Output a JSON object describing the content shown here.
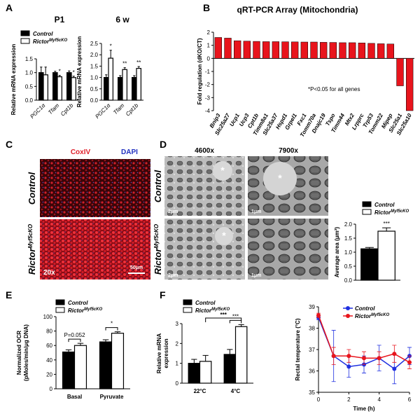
{
  "panel_labels": [
    "A",
    "B",
    "C",
    "D",
    "E",
    "F"
  ],
  "images": {
    "C": {
      "channels": [
        "CoxIV",
        "DAPI"
      ],
      "rows": [
        {
          "label": "Control"
        },
        {
          "label": "Rictor",
          "superscript": "Myf5cKO"
        }
      ],
      "magnification": "20x",
      "scale_bar": "50μm"
    },
    "D": {
      "columns": [
        "4600x",
        "7900x"
      ],
      "rows": [
        {
          "label": "Control"
        },
        {
          "label": "Rictor",
          "superscript": "Myf5cKO"
        }
      ],
      "scale_bars": [
        "2μm",
        "1μm",
        "2μm",
        "1μm"
      ],
      "markers": [
        "*",
        "*",
        "*"
      ]
    }
  },
  "chart_data": [
    {
      "type": "bar",
      "title": "P1",
      "ylabel": "Relative mRNA expression",
      "categories": [
        "PGC1α",
        "Tfam",
        "Cpt1b"
      ],
      "series": [
        {
          "name": "Control",
          "color": "#000000",
          "values": [
            1.0,
            1.0,
            1.0
          ],
          "errors": [
            0.2,
            0.05,
            0.06
          ]
        },
        {
          "name": "Rictor",
          "superscript": "Myf5cKO",
          "color": "#ffffff",
          "values": [
            0.92,
            0.85,
            0.82
          ],
          "errors": [
            0.28,
            0.05,
            0.05
          ]
        }
      ],
      "ylim": [
        0,
        1.5
      ],
      "yticks": [
        {
          "value": 0,
          "label": "0.0"
        },
        {
          "value": 0.5,
          "label": "0.5"
        },
        {
          "value": 1,
          "label": "1.0"
        },
        {
          "value": 1.5,
          "label": "1.5"
        }
      ],
      "annotations": [
        "*",
        "*"
      ],
      "legend": "top-left"
    },
    {
      "type": "bar",
      "title": "6 w",
      "ylabel": "Relative mRNA expression",
      "categories": [
        "PGC1α",
        "Tfam",
        "Cpt1b"
      ],
      "series": [
        {
          "name": "Control",
          "color": "#000000",
          "values": [
            1.0,
            1.0,
            1.0
          ],
          "errors": [
            0.12,
            0.08,
            0.08
          ]
        },
        {
          "name": "Rictor",
          "superscript": "Myf5cKO",
          "color": "#ffffff",
          "values": [
            1.85,
            1.35,
            1.4
          ],
          "errors": [
            0.35,
            0.08,
            0.08
          ]
        }
      ],
      "ylim": [
        0,
        2.5
      ],
      "yticks": [
        {
          "value": 0,
          "label": "0.0"
        },
        {
          "value": 0.5,
          "label": "0.5"
        },
        {
          "value": 1,
          "label": "1.0"
        },
        {
          "value": 1.5,
          "label": "1.5"
        },
        {
          "value": 2,
          "label": "2.0"
        },
        {
          "value": 2.5,
          "label": "2.5"
        }
      ],
      "annotations": [
        "*",
        "**",
        "**"
      ]
    },
    {
      "type": "bar",
      "title": "qRT-PCR Array (Mitochondria)",
      "ylabel": "Fold regulation (dKO/CT)",
      "categories": [
        "Bnip3",
        "Slc25a27",
        "Ucp1",
        "Ucp3",
        "Cpt1b",
        "Timm8a1",
        "Slc25a37",
        "Hspd1",
        "Grpel1",
        "Fxc1",
        "Tomm70a",
        "Dnajc19",
        "Tspo",
        "Timm44",
        "Mtx2",
        "Lrpprc",
        "Trp53",
        "Tomm22",
        "Mipep",
        "Slc25a1",
        "Slc25a10"
      ],
      "values": [
        1.6,
        1.55,
        1.35,
        1.32,
        1.3,
        1.28,
        1.28,
        1.27,
        1.26,
        1.25,
        1.25,
        1.23,
        1.22,
        1.2,
        1.2,
        1.18,
        1.15,
        1.12,
        1.1,
        -2.1,
        -4.0
      ],
      "color": "#e8141c",
      "ylim": [
        -4,
        2
      ],
      "yticks": [
        -4,
        -3,
        -2,
        -1,
        0,
        1,
        2
      ],
      "annotations": [
        "*P<0.05 for all genes"
      ]
    },
    {
      "type": "bar",
      "ylabel": "Average area (μm²)",
      "categories": [
        null
      ],
      "series": [
        {
          "name": "Control",
          "color": "#000000",
          "values": [
            1.12
          ],
          "errors": [
            0.05
          ]
        },
        {
          "name": "Rictor",
          "superscript": "Myf5cKO",
          "color": "#ffffff",
          "values": [
            1.75
          ],
          "errors": [
            0.12
          ]
        }
      ],
      "ylim": [
        0,
        2
      ],
      "yticks": [
        {
          "value": 0,
          "label": "0.0"
        },
        {
          "value": 0.5,
          "label": "0.5"
        },
        {
          "value": 1,
          "label": "1.0"
        },
        {
          "value": 1.5,
          "label": "1.5"
        },
        {
          "value": 2,
          "label": "2.0"
        }
      ],
      "annotations": [
        "***"
      ],
      "legend": "top-left"
    },
    {
      "type": "bar",
      "ylabel": [
        "Normalized OCR",
        "(pMoles/min/μg DNA)"
      ],
      "categories": [
        "Basal",
        "Pyruvate"
      ],
      "series": [
        {
          "name": "Control",
          "color": "#000000",
          "values": [
            51,
            65
          ],
          "errors": [
            3,
            3
          ]
        },
        {
          "name": "Rictor",
          "superscript": "Myf5cKO",
          "color": "#ffffff",
          "values": [
            60,
            77
          ],
          "errors": [
            3,
            2
          ]
        }
      ],
      "ylim": [
        0,
        100
      ],
      "yticks": [
        0,
        20,
        40,
        60,
        80,
        100
      ],
      "annotations": [
        "P=0.052",
        "*"
      ],
      "legend": "top-left"
    },
    {
      "type": "bar",
      "ylabel": [
        "Relative mRNA",
        "expression"
      ],
      "categories": [
        "22°C",
        "4°C"
      ],
      "series": [
        {
          "name": "Control",
          "color": "#000000",
          "values": [
            1.0,
            1.45
          ],
          "errors": [
            0.2,
            0.25
          ]
        },
        {
          "name": "Rictor",
          "superscript": "Myf5cKO",
          "color": "#ffffff",
          "values": [
            1.1,
            2.85
          ],
          "errors": [
            0.3,
            0.1
          ]
        }
      ],
      "ylim": [
        0,
        3
      ],
      "yticks": [
        0,
        1,
        2,
        3
      ],
      "annotations": [
        "***",
        "***"
      ],
      "legend": "top-left"
    },
    {
      "type": "line",
      "xlabel": "Time (h)",
      "ylabel": "Rectal temperature (°C)",
      "x": [
        0,
        1,
        2,
        3,
        4,
        5,
        6
      ],
      "series": [
        {
          "name": "Control",
          "color": "#1f2fe0",
          "values": [
            38.5,
            36.7,
            36.2,
            36.3,
            36.6,
            36.1,
            36.7
          ],
          "errors": [
            0.1,
            1.2,
            0.5,
            0.4,
            0.6,
            0.7,
            0.4
          ]
        },
        {
          "name": "Rictor",
          "superscript": "Myf5cKO",
          "color": "#e8141c",
          "values": [
            38.6,
            36.7,
            36.7,
            36.6,
            36.6,
            36.8,
            36.4
          ],
          "errors": [
            0.1,
            0.4,
            0.3,
            0.3,
            0.3,
            0.4,
            0.3
          ]
        }
      ],
      "xlim": [
        0,
        6
      ],
      "ylim": [
        35,
        39
      ],
      "xticks": [
        0,
        2,
        4,
        6
      ],
      "yticks": [
        35,
        36,
        37,
        38,
        39
      ],
      "legend": "top-right"
    }
  ]
}
